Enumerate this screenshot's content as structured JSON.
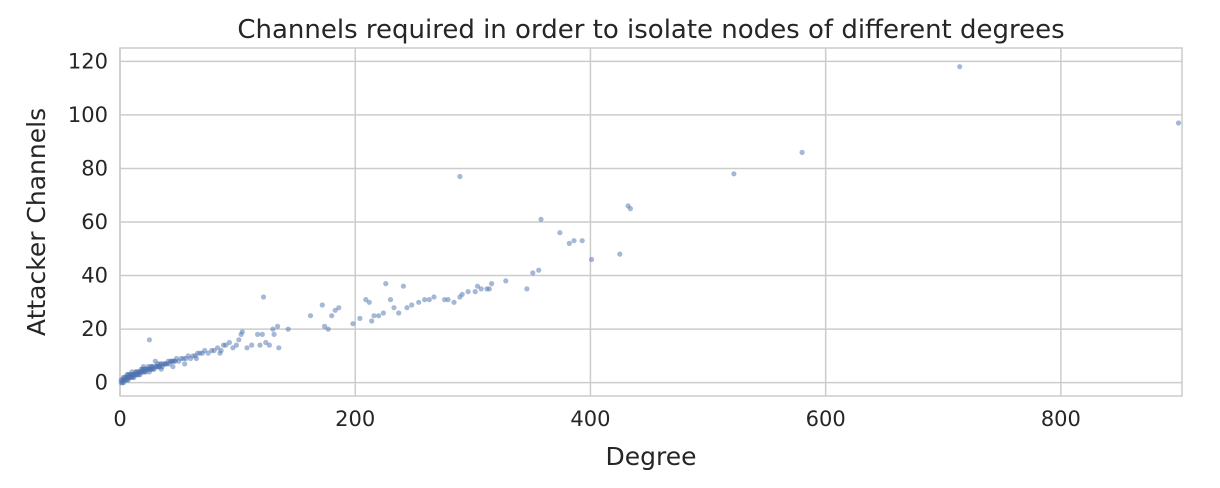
{
  "chart_data": {
    "type": "scatter",
    "title": "Channels required in order to isolate nodes of different degrees",
    "xlabel": "Degree",
    "ylabel": "Attacker Channels",
    "xlim": [
      0,
      903
    ],
    "ylim": [
      -5,
      125
    ],
    "xticks": [
      0,
      200,
      400,
      600,
      800
    ],
    "yticks": [
      0,
      20,
      40,
      60,
      80,
      100,
      120
    ],
    "grid": true,
    "colors": {
      "point": "#4c72b0",
      "grid": "#cccccc",
      "text": "#262626"
    },
    "point_opacity": 0.5,
    "series": [
      {
        "points": [
          [
            1,
            0
          ],
          [
            1,
            1
          ],
          [
            2,
            1
          ],
          [
            2,
            0
          ],
          [
            3,
            1
          ],
          [
            3,
            0
          ],
          [
            3,
            2
          ],
          [
            4,
            1
          ],
          [
            4,
            2
          ],
          [
            5,
            1
          ],
          [
            5,
            2
          ],
          [
            6,
            1
          ],
          [
            6,
            2
          ],
          [
            6,
            3
          ],
          [
            7,
            1
          ],
          [
            7,
            2
          ],
          [
            7,
            3
          ],
          [
            8,
            2
          ],
          [
            8,
            3
          ],
          [
            9,
            2
          ],
          [
            9,
            3
          ],
          [
            10,
            2
          ],
          [
            10,
            3
          ],
          [
            11,
            2
          ],
          [
            11,
            3
          ],
          [
            12,
            3
          ],
          [
            12,
            2
          ],
          [
            13,
            3
          ],
          [
            13,
            4
          ],
          [
            14,
            3
          ],
          [
            14,
            4
          ],
          [
            15,
            3
          ],
          [
            15,
            4
          ],
          [
            16,
            3
          ],
          [
            16,
            4
          ],
          [
            17,
            4
          ],
          [
            17,
            3
          ],
          [
            18,
            4
          ],
          [
            18,
            5
          ],
          [
            19,
            4
          ],
          [
            19,
            5
          ],
          [
            20,
            4
          ],
          [
            20,
            5
          ],
          [
            21,
            4
          ],
          [
            21,
            5
          ],
          [
            22,
            5
          ],
          [
            22,
            4
          ],
          [
            23,
            5
          ],
          [
            24,
            5
          ],
          [
            24,
            6
          ],
          [
            25,
            5
          ],
          [
            25,
            4
          ],
          [
            26,
            5
          ],
          [
            26,
            6
          ],
          [
            27,
            5
          ],
          [
            27,
            6
          ],
          [
            28,
            6
          ],
          [
            28,
            5
          ],
          [
            29,
            5
          ],
          [
            30,
            6
          ],
          [
            31,
            6
          ],
          [
            32,
            6
          ],
          [
            32,
            7
          ],
          [
            33,
            6
          ],
          [
            34,
            6
          ],
          [
            34,
            7
          ],
          [
            35,
            7
          ],
          [
            36,
            6
          ],
          [
            37,
            7
          ],
          [
            38,
            7
          ],
          [
            39,
            7
          ],
          [
            40,
            7
          ],
          [
            41,
            8
          ],
          [
            42,
            7
          ],
          [
            43,
            8
          ],
          [
            44,
            8
          ],
          [
            45,
            8
          ],
          [
            46,
            8
          ],
          [
            47,
            8
          ],
          [
            48,
            9
          ],
          [
            50,
            8
          ],
          [
            52,
            9
          ],
          [
            54,
            9
          ],
          [
            56,
            9
          ],
          [
            58,
            10
          ],
          [
            60,
            9
          ],
          [
            62,
            10
          ],
          [
            64,
            10
          ],
          [
            66,
            11
          ],
          [
            68,
            11
          ],
          [
            70,
            11
          ],
          [
            72,
            12
          ],
          [
            75,
            11
          ],
          [
            78,
            12
          ],
          [
            80,
            12
          ],
          [
            83,
            13
          ],
          [
            86,
            12
          ],
          [
            88,
            14
          ],
          [
            90,
            14
          ],
          [
            93,
            15
          ],
          [
            96,
            13
          ],
          [
            99,
            14
          ],
          [
            101,
            16
          ],
          [
            103,
            18
          ],
          [
            104,
            19
          ],
          [
            108,
            13
          ],
          [
            112,
            14
          ],
          [
            117,
            18
          ],
          [
            119,
            14
          ],
          [
            121,
            18
          ],
          [
            124,
            15
          ],
          [
            127,
            14
          ],
          [
            130,
            20
          ],
          [
            131,
            18
          ],
          [
            134,
            21
          ],
          [
            135,
            13
          ],
          [
            143,
            20
          ],
          [
            25,
            16
          ],
          [
            10,
            4
          ],
          [
            20,
            6
          ],
          [
            30,
            8
          ],
          [
            35,
            5
          ],
          [
            45,
            6
          ],
          [
            55,
            7
          ],
          [
            65,
            9
          ],
          [
            85,
            11
          ],
          [
            122,
            32
          ],
          [
            162,
            25
          ],
          [
            172,
            29
          ],
          [
            174,
            21
          ],
          [
            177,
            20
          ],
          [
            180,
            25
          ],
          [
            183,
            27
          ],
          [
            186,
            28
          ],
          [
            198,
            22
          ],
          [
            204,
            24
          ],
          [
            209,
            31
          ],
          [
            212,
            30
          ],
          [
            214,
            23
          ],
          [
            216,
            25
          ],
          [
            220,
            25
          ],
          [
            224,
            26
          ],
          [
            226,
            37
          ],
          [
            230,
            31
          ],
          [
            233,
            28
          ],
          [
            237,
            26
          ],
          [
            241,
            36
          ],
          [
            244,
            28
          ],
          [
            248,
            29
          ],
          [
            254,
            30
          ],
          [
            259,
            31
          ],
          [
            263,
            31
          ],
          [
            267,
            32
          ],
          [
            276,
            31
          ],
          [
            279,
            31
          ],
          [
            284,
            30
          ],
          [
            289,
            32
          ],
          [
            291,
            33
          ],
          [
            296,
            34
          ],
          [
            302,
            34
          ],
          [
            304,
            36
          ],
          [
            307,
            35
          ],
          [
            312,
            35
          ],
          [
            314,
            35
          ],
          [
            316,
            37
          ],
          [
            328,
            38
          ],
          [
            346,
            35
          ],
          [
            351,
            41
          ],
          [
            356,
            42
          ],
          [
            289,
            77
          ],
          [
            358,
            61
          ],
          [
            374,
            56
          ],
          [
            382,
            52
          ],
          [
            386,
            53
          ],
          [
            393,
            53
          ],
          [
            401,
            46
          ],
          [
            425,
            48
          ],
          [
            432,
            66
          ],
          [
            434,
            65
          ],
          [
            522,
            78
          ],
          [
            580,
            86
          ],
          [
            714,
            118
          ],
          [
            900,
            97
          ]
        ]
      }
    ]
  }
}
